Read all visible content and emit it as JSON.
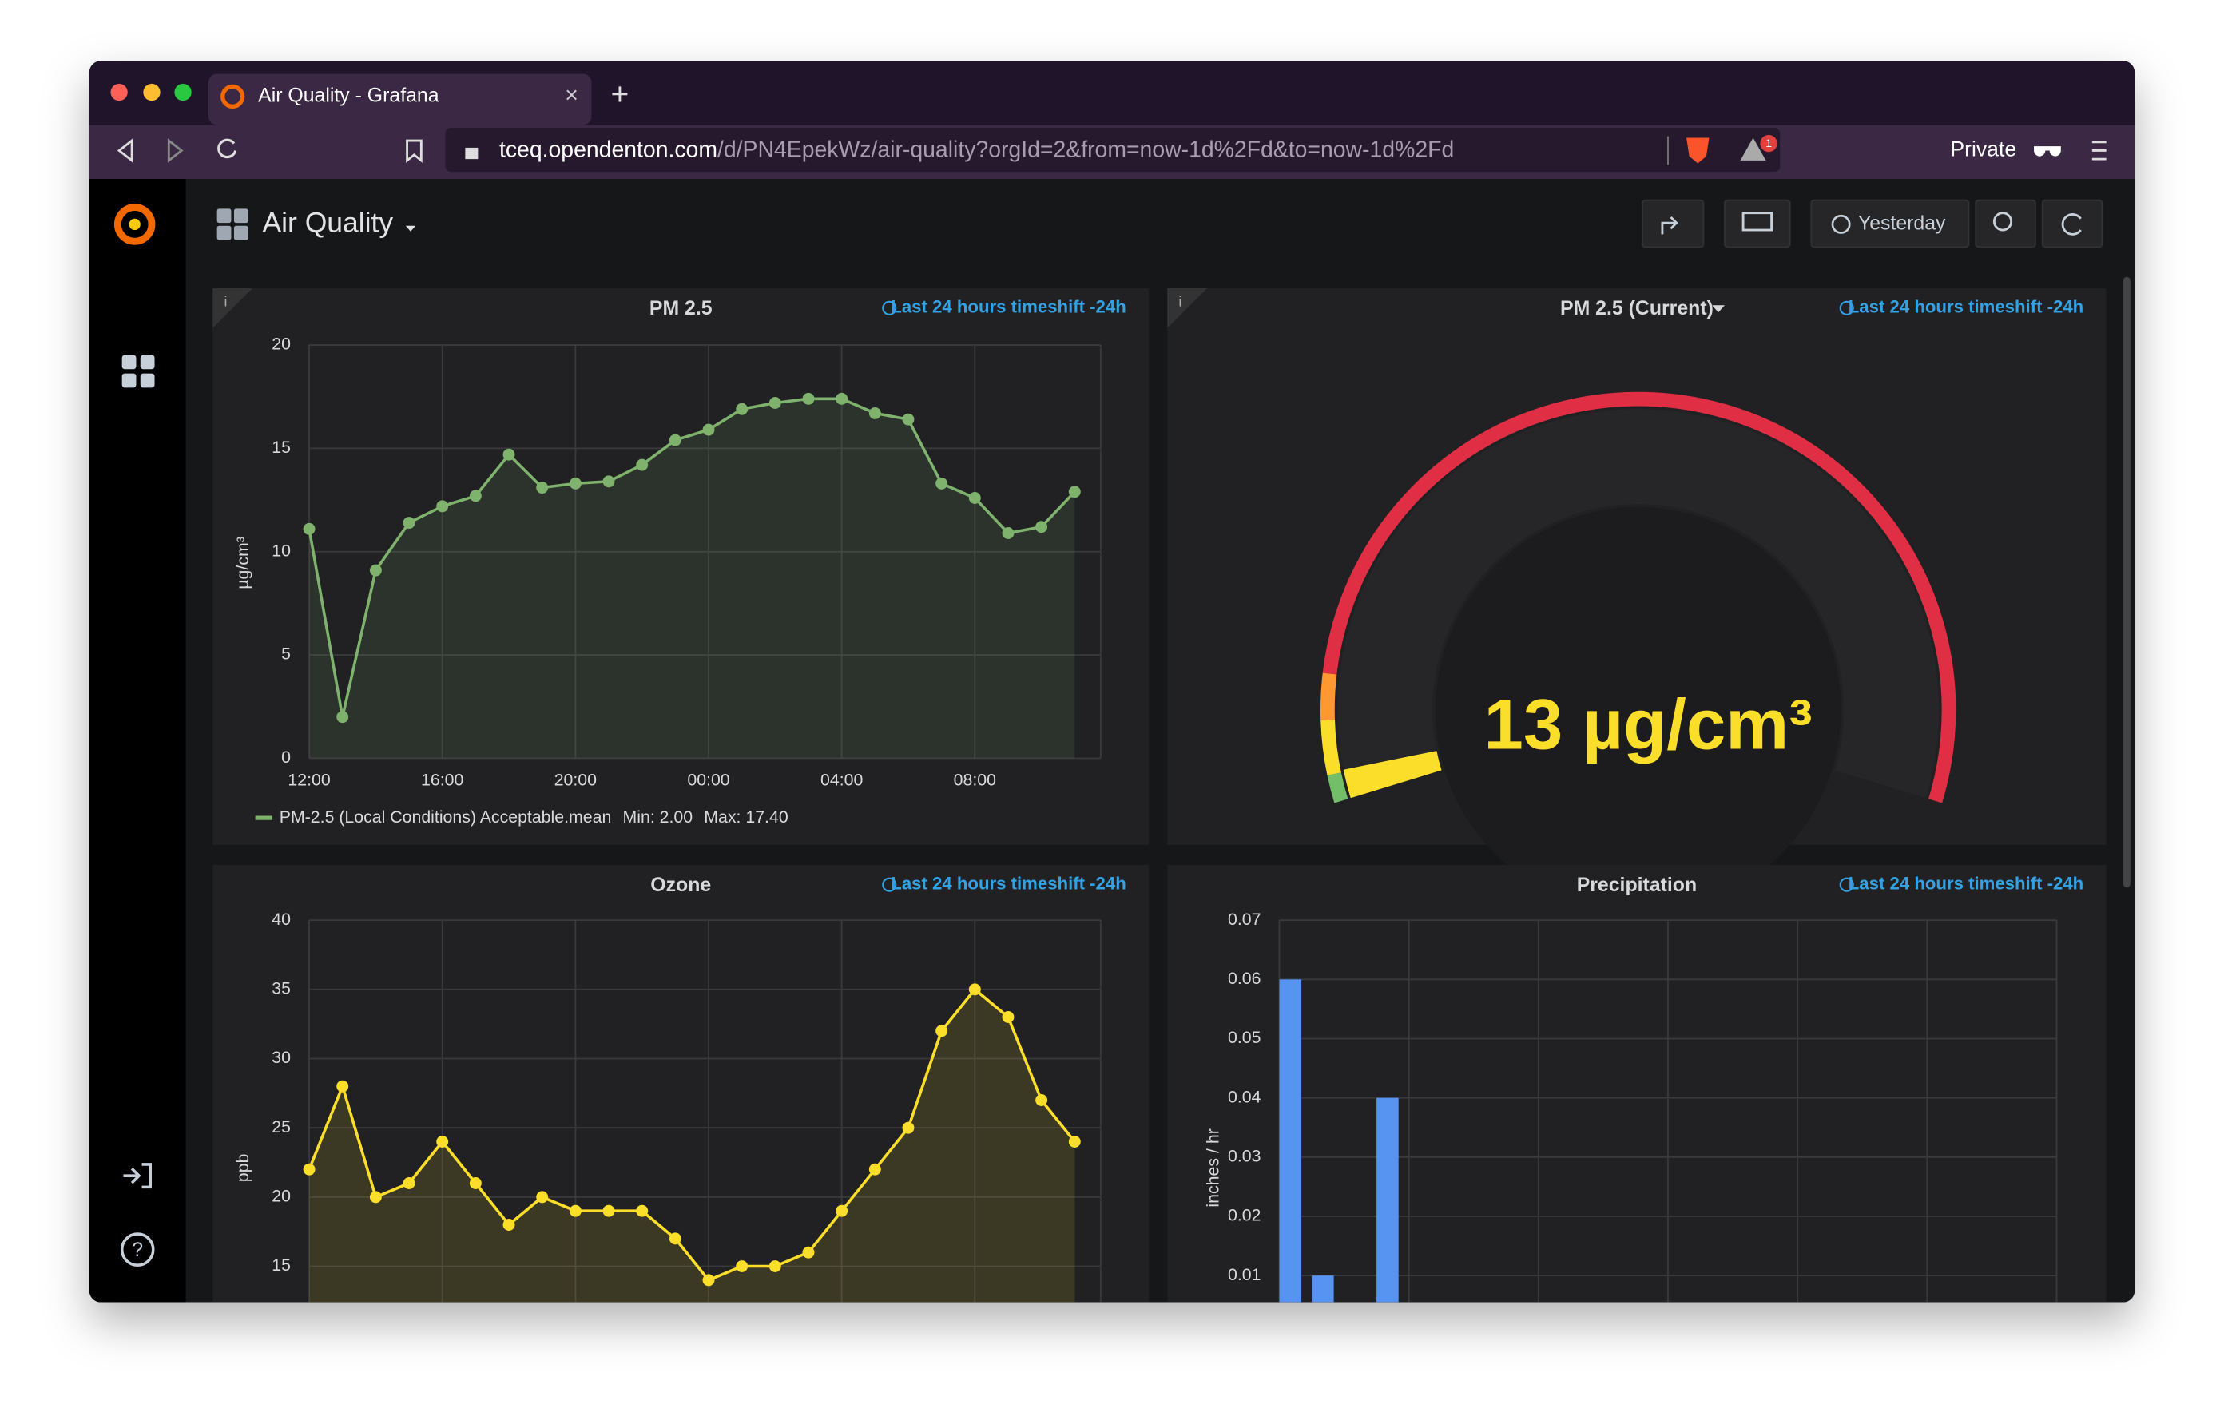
{
  "browser": {
    "tab_title": "Air Quality - Grafana",
    "url_host": "tceq.opendenton.com",
    "url_path": "/d/PN4EpekWz/air-quality?orgId=2&from=now-1d%2Fd&to=now-1d%2Fd",
    "private_label": "Private",
    "alert_badge": "1"
  },
  "dashboard": {
    "title": "Air Quality",
    "time_picker": "Yesterday"
  },
  "chart_data": [
    {
      "type": "line",
      "title": "PM 2.5",
      "time_info": "Last 24 hours timeshift -24h",
      "y_label": "µg/cm³",
      "categories": [
        "12:00",
        null,
        null,
        null,
        "16:00",
        null,
        null,
        null,
        "20:00",
        null,
        null,
        null,
        "00:00",
        null,
        null,
        null,
        "04:00",
        null,
        null,
        null,
        "08:00",
        null,
        null,
        null
      ],
      "series": [
        {
          "name": "PM-2.5 (Local Conditions) Acceptable.mean",
          "color": "#7eb26d",
          "values": [
            11.1,
            2.0,
            9.1,
            11.4,
            12.2,
            12.7,
            14.7,
            13.1,
            13.3,
            13.4,
            14.2,
            15.4,
            15.9,
            16.9,
            17.2,
            17.4,
            17.4,
            16.7,
            16.4,
            13.3,
            12.6,
            10.9,
            11.2,
            12.9
          ]
        }
      ],
      "legend_min": "Min: 2.00",
      "legend_max": "Max: 17.40",
      "ylim": [
        0,
        20
      ],
      "yticks": [
        0,
        5,
        10,
        15,
        20
      ],
      "grid": true
    },
    {
      "type": "gauge",
      "title": "PM 2.5 (Current)",
      "time_info": "Last 24 hours timeshift -24h",
      "value": 13,
      "value_label": "13 µg/cm³",
      "min": 0,
      "max": 500,
      "thresholds": [
        12,
        35.4,
        55.4
      ],
      "colors": [
        "#73bf69",
        "#fade2a",
        "#ff9830",
        "#e02f44"
      ]
    },
    {
      "type": "line",
      "title": "Ozone",
      "time_info": "Last 24 hours timeshift -24h",
      "y_label": "ppb",
      "series": [
        {
          "name": "Ozone",
          "color": "#fade2a",
          "values": [
            22,
            28,
            20,
            21,
            24,
            21,
            18,
            20,
            19,
            19,
            19,
            17,
            14,
            15,
            15,
            16,
            19,
            22,
            25,
            32,
            35,
            33,
            27,
            24
          ]
        }
      ],
      "ylim": [
        0,
        40
      ],
      "yticks": [
        15,
        20,
        25,
        30,
        35,
        40
      ],
      "grid": true
    },
    {
      "type": "bar",
      "title": "Precipitation",
      "time_info": "Last 24 hours timeshift -24h",
      "y_label": "inches / hr",
      "color": "#5794f2",
      "values": [
        0.06,
        0.01,
        0,
        0.04,
        0,
        0,
        0,
        0,
        0,
        0,
        0,
        0,
        0,
        0,
        0,
        0,
        0,
        0,
        0,
        0,
        0,
        0,
        0,
        0
      ],
      "ylim": [
        0,
        0.07
      ],
      "yticks": [
        0.01,
        0.02,
        0.03,
        0.04,
        0.05,
        0.06,
        0.07
      ],
      "grid": true
    }
  ]
}
